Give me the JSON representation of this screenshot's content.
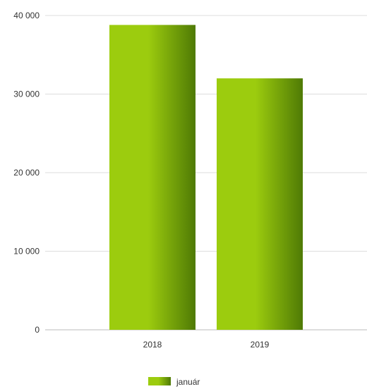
{
  "chart_data": {
    "type": "bar",
    "categories": [
      "2018",
      "2019"
    ],
    "series": [
      {
        "name": "január",
        "values": [
          38800,
          32000
        ]
      }
    ],
    "ylim": [
      0,
      40000
    ],
    "yticks": [
      0,
      10000,
      20000,
      30000,
      40000
    ],
    "ytick_labels": [
      "0",
      "10 000",
      "20 000",
      "30 000",
      "40 000"
    ],
    "grid": true,
    "legend": "bottom-center",
    "colors": {
      "bar_light": "#9ccc0e",
      "bar_dark": "#4f7a05",
      "grid": "#dddddd",
      "axis": "#bbbbbb",
      "text": "#333333"
    }
  }
}
